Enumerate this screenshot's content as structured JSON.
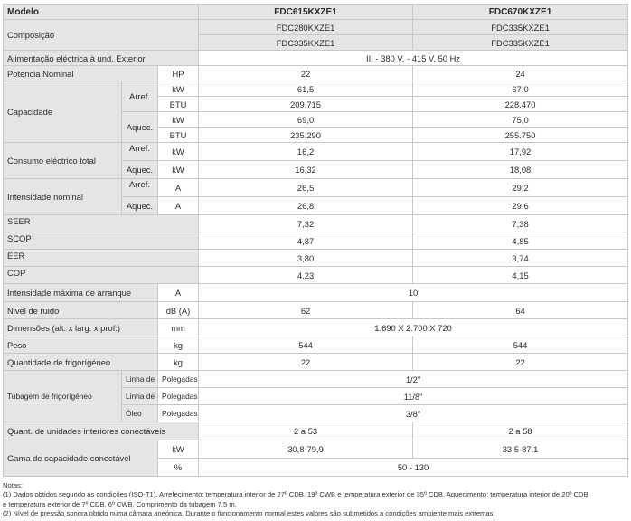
{
  "table": {
    "header": {
      "label": "Modelo",
      "model1": "FDC615KXZE1",
      "model2": "FDC670KXZE1"
    },
    "composicao": {
      "label": "Composição",
      "m1": [
        "FDC280KXZE1",
        "FDC335KXZE1"
      ],
      "m2": [
        "FDC335KXZE1",
        "FDC335KXZE1"
      ]
    },
    "alimentacao": {
      "label": "Alimentação eléctrica à und. Exterior",
      "value": "III - 380 V. - 415 V. 50 Hz"
    },
    "potencia": {
      "label": "Potencia Nominal",
      "unit": "HP",
      "v1": "22",
      "v2": "24"
    },
    "capacidade": {
      "label": "Capacidade",
      "arref": {
        "label": "Arref.",
        "kw_unit": "kW",
        "kw1": "61,5",
        "kw2": "67,0",
        "btu_unit": "BTU",
        "btu1": "209.715",
        "btu2": "228.470"
      },
      "aquec": {
        "label": "Aquec.",
        "kw_unit": "kW",
        "kw1": "69,0",
        "kw2": "75,0",
        "btu_unit": "BTU",
        "btu1": "235.290",
        "btu2": "255.750"
      }
    },
    "consumo": {
      "label": "Consumo eléctrico total",
      "arref": {
        "label": "Arref.",
        "unit": "kW",
        "v1": "16,2",
        "v2": "17,92"
      },
      "aquec": {
        "label": "Aquec.",
        "unit": "kW",
        "v1": "16,32",
        "v2": "18,08"
      }
    },
    "intensidade": {
      "label": "Intensidade nominal",
      "arref": {
        "label": "Arref.",
        "unit": "A",
        "v1": "26,5",
        "v2": "29,2"
      },
      "aquec": {
        "label": "Aquec.",
        "unit": "A",
        "v1": "26,8",
        "v2": "29,6"
      }
    },
    "seer": {
      "label": "SEER",
      "v1": "7,32",
      "v2": "7,38"
    },
    "scop": {
      "label": "SCOP",
      "v1": "4,87",
      "v2": "4,85"
    },
    "eer": {
      "label": "EER",
      "v1": "3,80",
      "v2": "3,74"
    },
    "cop": {
      "label": "COP",
      "v1": "4,23",
      "v2": "4,15"
    },
    "intensidade_max": {
      "label": "Intensidade máxima de arranque",
      "unit": "A",
      "value": "10"
    },
    "ruido": {
      "label": "Nivel de ruido",
      "unit": "dB (A)",
      "v1": "62",
      "v2": "64"
    },
    "dimensoes": {
      "label": "Dimensões (alt. x larg. x prof.)",
      "unit": "mm",
      "value": "1.690 X 2.700 X 720"
    },
    "peso": {
      "label": "Peso",
      "unit": "kg",
      "v1": "544",
      "v2": "544"
    },
    "frigorigeno": {
      "label": "Quantidade de frigorígéneo",
      "unit": "kg",
      "v1": "22",
      "v2": "22"
    },
    "tubagem": {
      "label": "Tubagem de frigorígéneo",
      "liquido": {
        "label": "Linha de líquido",
        "unit": "Polegadas",
        "value": "1/2\""
      },
      "gas": {
        "label": "Linha de gás",
        "unit": "Polegadas",
        "value": "11/8\""
      },
      "oleo": {
        "label": "Óleo",
        "unit": "Polegadas",
        "value": "3/8\""
      }
    },
    "quant_unidades": {
      "label": "Quant. de unidades interiores conectáveis",
      "v1": "2 a 53",
      "v2": "2 a 58"
    },
    "gama": {
      "label": "Gama de capacidade conectável",
      "kw_unit": "kW",
      "kw1": "30,8-79,9",
      "kw2": "33,5-87,1",
      "pct_unit": "%",
      "pct": "50 - 130"
    }
  },
  "notes": [
    "Notas:",
    "(1) Dados obtidos segundo as condições (ISO-T1). Arrefecimento: temperatura interior de 27º CDB, 19º CWB e temperatura exterior de 35º CDB. Aquecimento: temperatura interior de 20º CDB",
    "e temperatura exterior de 7º CDB, 6º CWB. Comprimento da tubagem 7,5 m.",
    "(2) Nível de pressão sonora obtido numa câmara aneónica. Durante o funcionamento normal estes valores são submetidos a condições ambiente mais extremas."
  ]
}
